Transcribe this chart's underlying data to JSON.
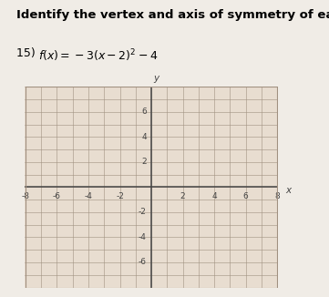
{
  "title": "Identify the vertex and axis of symmetry of each.",
  "problem_num": "15) ",
  "equation_text": "f(x) = -3(x - 2)^{2} - 4",
  "xmin": -8,
  "xmax": 8,
  "ymin": -8,
  "ymax": 8,
  "xtick_labels": [
    -8,
    -6,
    -4,
    -2,
    2,
    4,
    6,
    8
  ],
  "ytick_labels": [
    -6,
    -4,
    -2,
    2,
    4,
    6
  ],
  "grid_color": "#a09080",
  "axis_color": "#444444",
  "grid_bg": "#e8ddd0",
  "page_bg": "#f0ece6",
  "title_fontsize": 9.5,
  "eq_fontsize": 9,
  "tick_fontsize": 6.5
}
